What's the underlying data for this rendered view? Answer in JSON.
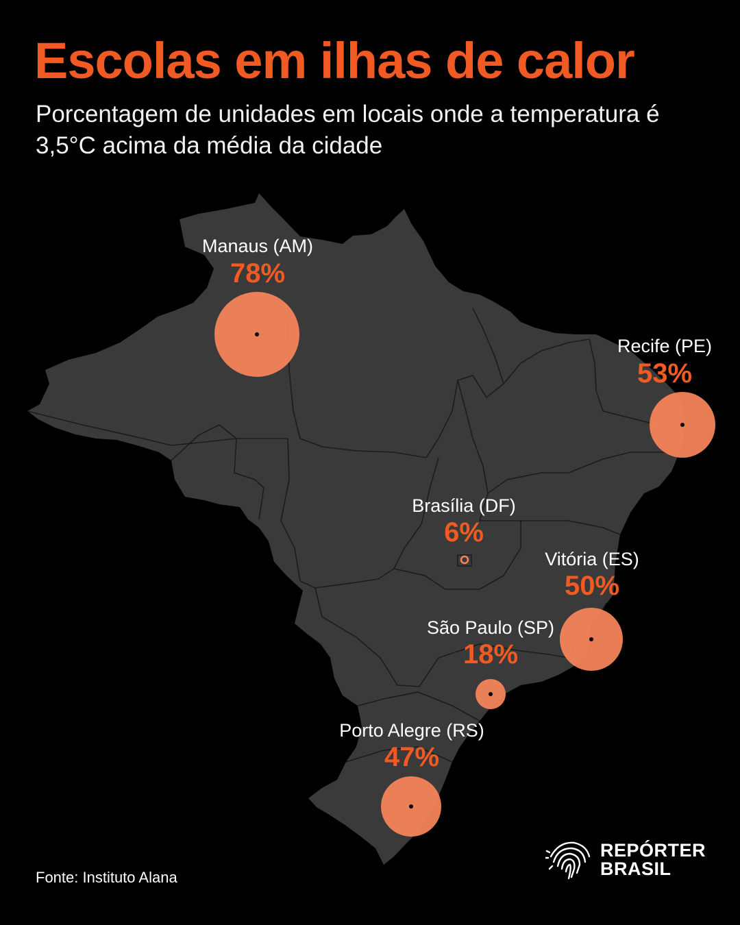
{
  "title": "Escolas em ilhas de calor",
  "subtitle": "Porcentagem de unidades em locais onde a temperatura é 3,5°C acima da média da cidade",
  "source": "Fonte: Instituto Alana",
  "brand": {
    "line1": "REPÓRTER",
    "line2": "BRASIL",
    "icon": "fingerprint-brazil-icon"
  },
  "colors": {
    "background": "#000000",
    "land": "#3a3a3a",
    "border": "#1c1c1c",
    "accent": "#f25a23",
    "bubble": "#f4845a"
  },
  "cities": [
    {
      "id": "manaus",
      "name": "Manaus (AM)",
      "pct_label": "78%",
      "value": 78
    },
    {
      "id": "recife",
      "name": "Recife (PE)",
      "pct_label": "53%",
      "value": 53
    },
    {
      "id": "brasilia",
      "name": "Brasília (DF)",
      "pct_label": "6%",
      "value": 6
    },
    {
      "id": "vitoria",
      "name": "Vitória (ES)",
      "pct_label": "50%",
      "value": 50
    },
    {
      "id": "sao-paulo",
      "name": "São Paulo (SP)",
      "pct_label": "18%",
      "value": 18
    },
    {
      "id": "porto-alegre",
      "name": "Porto Alegre (RS)",
      "pct_label": "47%",
      "value": 47
    }
  ]
}
